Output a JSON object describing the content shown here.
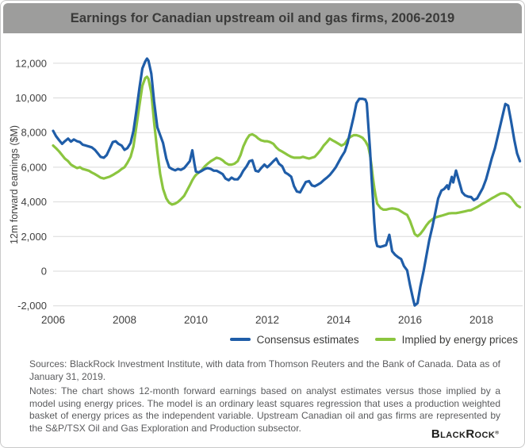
{
  "header": {
    "title": "Earnings for Canadian upstream oil and gas firms, 2006-2019"
  },
  "chart_data": {
    "type": "line",
    "title": "Earnings for Canadian upstream oil and gas firms, 2006-2019",
    "xlabel": "",
    "ylabel": "12m forward earnings ($M)",
    "xlim": [
      2006,
      2019.1
    ],
    "ylim": [
      -2000,
      12000
    ],
    "grid": "horizontal",
    "legend_position": "bottom-right",
    "x_ticks": [
      2006,
      2008,
      2010,
      2012,
      2014,
      2016,
      2018
    ],
    "y_ticks": [
      -2000,
      0,
      2000,
      4000,
      6000,
      8000,
      10000,
      12000
    ],
    "y_tick_labels": [
      "-2,000",
      "0",
      "2,000",
      "4,000",
      "6,000",
      "8,000",
      "10,000",
      "12,000"
    ],
    "x": [
      2006.0,
      2006.08,
      2006.17,
      2006.25,
      2006.33,
      2006.42,
      2006.5,
      2006.58,
      2006.67,
      2006.75,
      2006.83,
      2006.92,
      2007.0,
      2007.08,
      2007.17,
      2007.25,
      2007.33,
      2007.42,
      2007.5,
      2007.58,
      2007.67,
      2007.75,
      2007.83,
      2007.92,
      2008.0,
      2008.08,
      2008.17,
      2008.25,
      2008.33,
      2008.42,
      2008.5,
      2008.58,
      2008.63,
      2008.67,
      2008.75,
      2008.83,
      2008.92,
      2009.0,
      2009.08,
      2009.17,
      2009.25,
      2009.33,
      2009.42,
      2009.5,
      2009.58,
      2009.67,
      2009.75,
      2009.83,
      2009.9,
      2009.96,
      2010.0,
      2010.08,
      2010.17,
      2010.25,
      2010.33,
      2010.42,
      2010.5,
      2010.58,
      2010.67,
      2010.75,
      2010.83,
      2010.92,
      2011.0,
      2011.08,
      2011.17,
      2011.25,
      2011.33,
      2011.42,
      2011.5,
      2011.58,
      2011.67,
      2011.75,
      2011.83,
      2011.92,
      2012.0,
      2012.08,
      2012.17,
      2012.25,
      2012.33,
      2012.42,
      2012.5,
      2012.58,
      2012.67,
      2012.75,
      2012.83,
      2012.92,
      2013.0,
      2013.08,
      2013.17,
      2013.25,
      2013.33,
      2013.42,
      2013.5,
      2013.58,
      2013.67,
      2013.75,
      2013.83,
      2013.92,
      2014.0,
      2014.08,
      2014.17,
      2014.25,
      2014.33,
      2014.42,
      2014.5,
      2014.58,
      2014.67,
      2014.75,
      2014.79,
      2014.83,
      2014.88,
      2014.92,
      2014.96,
      2015.0,
      2015.04,
      2015.08,
      2015.17,
      2015.25,
      2015.33,
      2015.42,
      2015.5,
      2015.58,
      2015.67,
      2015.75,
      2015.83,
      2015.92,
      2016.0,
      2016.08,
      2016.13,
      2016.21,
      2016.29,
      2016.38,
      2016.46,
      2016.54,
      2016.63,
      2016.71,
      2016.79,
      2016.88,
      2016.96,
      2017.04,
      2017.08,
      2017.17,
      2017.21,
      2017.29,
      2017.38,
      2017.46,
      2017.54,
      2017.63,
      2017.71,
      2017.79,
      2017.88,
      2017.96,
      2018.04,
      2018.13,
      2018.21,
      2018.29,
      2018.38,
      2018.46,
      2018.54,
      2018.63,
      2018.67,
      2018.75,
      2018.83,
      2018.92,
      2019.0,
      2019.08
    ],
    "series": [
      {
        "name": "Consensus estimates",
        "color": "#1F5DA8",
        "values": [
          8100,
          7800,
          7550,
          7350,
          7500,
          7650,
          7480,
          7600,
          7500,
          7450,
          7300,
          7250,
          7200,
          7150,
          7000,
          6800,
          6600,
          6550,
          6700,
          7050,
          7450,
          7500,
          7350,
          7250,
          7000,
          7100,
          7400,
          8100,
          9200,
          10600,
          11700,
          12100,
          12270,
          12150,
          11400,
          9800,
          8300,
          7850,
          7400,
          6500,
          6000,
          5900,
          5820,
          5900,
          5850,
          5950,
          6150,
          6350,
          6980,
          6200,
          5750,
          5700,
          5800,
          5900,
          5950,
          5900,
          5800,
          5800,
          5700,
          5600,
          5350,
          5250,
          5400,
          5300,
          5300,
          5500,
          5800,
          6050,
          6350,
          6400,
          5800,
          5750,
          5950,
          6150,
          6000,
          6150,
          6350,
          6500,
          6200,
          6050,
          5700,
          5600,
          5450,
          4900,
          4600,
          4550,
          4850,
          5150,
          5200,
          4950,
          4900,
          5000,
          5100,
          5250,
          5400,
          5550,
          5750,
          6000,
          6300,
          6600,
          6900,
          7400,
          8100,
          8900,
          9700,
          9950,
          9950,
          9900,
          9700,
          8500,
          7000,
          5500,
          4200,
          2800,
          1800,
          1450,
          1400,
          1450,
          1500,
          2100,
          1150,
          950,
          800,
          700,
          300,
          50,
          -800,
          -1550,
          -1980,
          -1850,
          -900,
          0,
          900,
          1800,
          2600,
          3400,
          4200,
          4650,
          4750,
          4950,
          4740,
          5440,
          5120,
          5810,
          5150,
          4560,
          4380,
          4300,
          4280,
          4100,
          4200,
          4500,
          4800,
          5300,
          5900,
          6500,
          7100,
          7800,
          8500,
          9300,
          9650,
          9550,
          8700,
          7600,
          6800,
          6350
        ]
      },
      {
        "name": "Implied by energy prices",
        "color": "#8BC53F",
        "values": [
          7250,
          7100,
          6900,
          6700,
          6500,
          6350,
          6150,
          6050,
          5950,
          6000,
          5900,
          5850,
          5800,
          5700,
          5600,
          5500,
          5400,
          5350,
          5400,
          5450,
          5550,
          5650,
          5750,
          5900,
          6000,
          6250,
          6600,
          7200,
          8300,
          9600,
          10700,
          11150,
          11220,
          11100,
          10300,
          8600,
          6900,
          5600,
          4750,
          4200,
          3950,
          3850,
          3900,
          4000,
          4150,
          4350,
          4650,
          4950,
          5250,
          5450,
          5550,
          5700,
          5850,
          6050,
          6200,
          6350,
          6450,
          6550,
          6500,
          6400,
          6250,
          6150,
          6150,
          6200,
          6350,
          6700,
          7200,
          7600,
          7850,
          7900,
          7800,
          7650,
          7550,
          7500,
          7500,
          7450,
          7350,
          7150,
          7000,
          6900,
          6800,
          6700,
          6600,
          6550,
          6550,
          6550,
          6600,
          6550,
          6500,
          6550,
          6600,
          6800,
          7000,
          7250,
          7450,
          7650,
          7550,
          7450,
          7350,
          7250,
          7350,
          7600,
          7750,
          7850,
          7850,
          7800,
          7700,
          7500,
          7350,
          7200,
          6700,
          6100,
          5400,
          4800,
          4300,
          3900,
          3650,
          3550,
          3550,
          3600,
          3620,
          3600,
          3550,
          3450,
          3350,
          3250,
          2900,
          2450,
          2150,
          2020,
          2150,
          2400,
          2650,
          2850,
          3000,
          3100,
          3150,
          3200,
          3250,
          3300,
          3330,
          3350,
          3350,
          3350,
          3380,
          3420,
          3450,
          3500,
          3520,
          3600,
          3700,
          3800,
          3900,
          4000,
          4100,
          4200,
          4300,
          4400,
          4480,
          4500,
          4480,
          4400,
          4250,
          4000,
          3800,
          3700
        ]
      }
    ]
  },
  "axes": {
    "y_label": "12m forward earnings ($M)"
  },
  "footer": {
    "sources": "Sources: BlackRock Investment Institute, with data from Thomson Reuters and the Bank of Canada. Data as of January 31, 2019.",
    "notes": "Notes: The chart shows 12-month forward earnings based on analyst estimates versus those implied by a model using energy prices. The model is an ordinary least squares regression that uses a production weighted basket of energy prices as the independent variable. Upstream Canadian oil and gas firms are represented by the S&P/TSX Oil and Gas Exploration and Production subsector.",
    "brand": "BlackRock",
    "brand_display": {
      "b1": "B",
      "rest1": "LACK",
      "b2": "R",
      "rest2": "OCK",
      "reg": "®"
    }
  },
  "colors": {
    "title_bar_bg": "#9D9D9C",
    "title_text": "#3A3A39",
    "consensus_line": "#1F5DA8",
    "implied_line": "#8BC53F",
    "gridline": "#D9D9D9",
    "tick_text": "#414141",
    "footer_text": "#5A5B5D",
    "brand_text": "#1D1D1B"
  }
}
